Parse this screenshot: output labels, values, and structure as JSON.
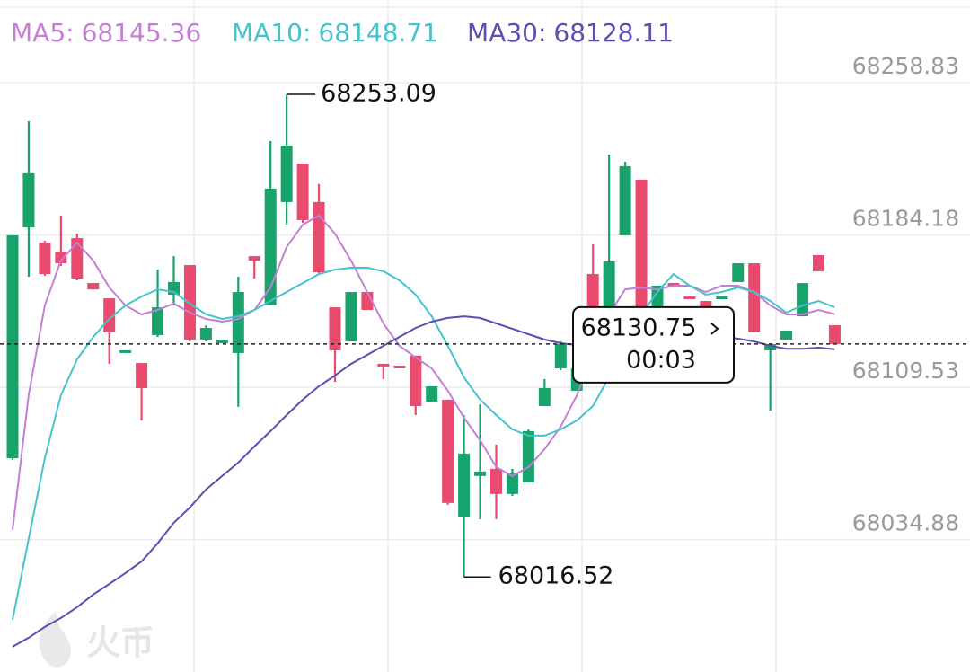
{
  "chart_data": {
    "type": "candlestick",
    "watermark": "火币",
    "countdown": "00:03",
    "ylim": [
      67969.93,
      68299.35
    ],
    "yticks": [
      68258.83,
      68184.18,
      68109.53,
      68034.88
    ],
    "grid": true,
    "up_color": "#17a36b",
    "down_color": "#ea4a6d",
    "open": [
      68074.7,
      68187.9,
      68180.4,
      68176.0,
      68182.6,
      68160.6,
      68153.1,
      68126.3,
      68121.4,
      68135.1,
      68154.9,
      68169.4,
      68132.9,
      68131.1,
      68126.3,
      68173.8,
      68149.6,
      68200.3,
      68219.2,
      68200.3,
      68148.7,
      68132.0,
      68156.2,
      68121.0,
      68120.1,
      68125.0,
      68102.5,
      68103.4,
      68045.7,
      68066.0,
      68069.5,
      68057.2,
      68062.9,
      68100.3,
      68118.8,
      68107.8,
      68165.0,
      68148.7,
      68184.0,
      68211.3,
      68147.4,
      68160.6,
      68154.0,
      68151.8,
      68152.7,
      68161.1,
      68170.3,
      68127.6,
      68132.9,
      68144.3,
      68174.3,
      68139.9
    ],
    "high": [
      68184.0,
      68239.9,
      68181.3,
      68193.7,
      68184.8,
      68160.6,
      68153.1,
      68127.6,
      68121.4,
      68167.2,
      68173.8,
      68169.4,
      68139.9,
      68132.9,
      68163.7,
      68173.8,
      68230.2,
      68253.09,
      68219.2,
      68209.1,
      68148.7,
      68156.2,
      68156.2,
      68121.0,
      68120.1,
      68125.0,
      68110.0,
      68103.4,
      68095.9,
      68101.2,
      68081.4,
      68069.5,
      68088.9,
      68113.5,
      68132.0,
      68118.8,
      68179.6,
      68223.6,
      68220.1,
      68211.3,
      68159.3,
      68160.6,
      68154.0,
      68151.8,
      68154.0,
      68170.3,
      68170.3,
      68130.7,
      68137.3,
      68160.6,
      68174.3,
      68139.9
    ],
    "low": [
      68073.9,
      68163.7,
      68164.2,
      68169.0,
      68161.9,
      68157.5,
      68121.0,
      68126.3,
      68093.2,
      68134.2,
      68149.6,
      68132.0,
      68132.0,
      68131.1,
      68099.9,
      68162.8,
      68149.6,
      68189.2,
      68190.1,
      68165.0,
      68112.2,
      68132.0,
      68147.4,
      68113.5,
      68118.8,
      68095.9,
      68102.5,
      68051.9,
      68016.52,
      68044.8,
      68044.8,
      68056.3,
      68062.9,
      68100.3,
      68118.0,
      68107.8,
      68132.0,
      68147.4,
      68184.0,
      68146.6,
      68147.4,
      68158.4,
      68152.7,
      68147.4,
      68152.7,
      68161.1,
      68136.4,
      68098.1,
      68132.9,
      68144.3,
      68166.4,
      68130.75
    ],
    "close": [
      68184.0,
      68214.4,
      68165.0,
      68170.3,
      68162.8,
      68157.5,
      68136.4,
      68127.6,
      68109.1,
      68148.7,
      68161.1,
      68132.9,
      68138.6,
      68132.9,
      68156.2,
      68171.6,
      68206.9,
      68228.0,
      68191.5,
      68165.9,
      68127.6,
      68156.2,
      68147.4,
      68119.7,
      68118.8,
      68100.3,
      68110.0,
      68052.8,
      68077.0,
      68068.2,
      68057.2,
      68067.3,
      68088.0,
      68109.1,
      68130.7,
      68118.8,
      68134.2,
      68171.2,
      68217.9,
      68146.6,
      68159.3,
      68158.4,
      68152.7,
      68147.4,
      68154.0,
      68170.3,
      68136.4,
      68130.7,
      68137.3,
      68160.6,
      68166.4,
      68130.75
    ],
    "series": [
      {
        "name": "MA5:",
        "color": "#c47fd5",
        "values": [
          68039.5,
          68105.6,
          68149.6,
          68171.6,
          68180.4,
          68171.6,
          68158.4,
          68149.6,
          68145.2,
          68147.4,
          68150.5,
          68146.1,
          68143.0,
          68141.7,
          68143.0,
          68147.4,
          68158.4,
          68178.2,
          68189.2,
          68193.7,
          68184.8,
          68171.6,
          68156.2,
          68140.8,
          68129.8,
          68124.1,
          68118.8,
          68107.8,
          68094.6,
          68083.6,
          68070.4,
          68066.0,
          68070.4,
          68079.2,
          68090.2,
          68105.6,
          68125.4,
          68145.2,
          68157.5,
          68158.4,
          68157.5,
          68159.3,
          68159.3,
          68156.2,
          68159.3,
          68159.3,
          68156.2,
          68149.6,
          68145.2,
          68145.2,
          68147.4,
          68145.36
        ]
      },
      {
        "name": "MA10:",
        "color": "#45c3cc",
        "values": [
          67995.5,
          68035.1,
          68074.7,
          68105.6,
          68123.2,
          68134.2,
          68143.0,
          68149.6,
          68154.0,
          68157.5,
          68156.2,
          68150.5,
          68145.2,
          68143.0,
          68144.3,
          68147.4,
          68151.8,
          68156.2,
          68160.6,
          68165.0,
          68167.2,
          68168.1,
          68168.1,
          68166.4,
          68161.9,
          68154.9,
          68144.3,
          68129.8,
          68114.4,
          68103.4,
          68095.9,
          68088.9,
          68085.8,
          68085.8,
          68088.9,
          68093.2,
          68100.3,
          68114.4,
          68127.6,
          68145.2,
          68156.2,
          68165.0,
          68159.3,
          68154.9,
          68156.2,
          68158.4,
          68156.2,
          68151.8,
          68146.1,
          68149.6,
          68151.8,
          68148.71
        ]
      },
      {
        "name": "MA30:",
        "color": "#5a4fb2",
        "values": [
          67982.3,
          67986.7,
          67992.0,
          67996.4,
          68001.7,
          68007.9,
          68013.1,
          68018.4,
          68024.1,
          68033.0,
          68043.1,
          68050.6,
          68059.4,
          68066.0,
          68072.6,
          68080.5,
          68088.0,
          68095.9,
          68103.4,
          68110.0,
          68115.3,
          68121.0,
          68125.4,
          68129.8,
          68134.2,
          68138.6,
          68141.7,
          68143.5,
          68144.3,
          68143.5,
          68140.8,
          68138.2,
          68135.5,
          68132.9,
          68131.1,
          68130.2,
          68129.3,
          68129.8,
          68131.1,
          68132.9,
          68135.1,
          68136.4,
          68136.4,
          68135.5,
          68134.6,
          68133.3,
          68132.0,
          68129.8,
          68128.4,
          68128.4,
          68128.9,
          68128.11
        ]
      }
    ]
  }
}
